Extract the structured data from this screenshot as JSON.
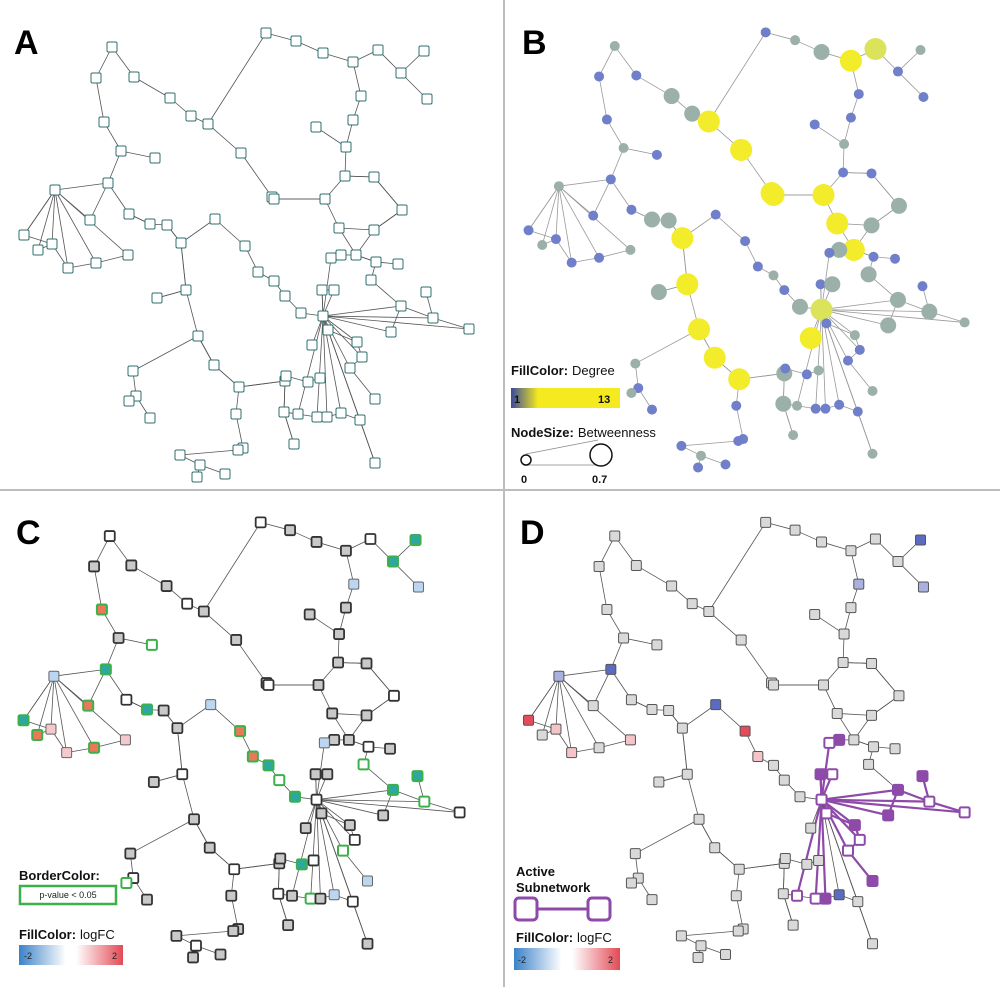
{
  "panels": {
    "a": {
      "label": "A"
    },
    "b": {
      "label": "B"
    },
    "c": {
      "label": "C"
    },
    "d": {
      "label": "D"
    }
  },
  "legend_b": {
    "fill_title": "FillColor:",
    "fill_attr": "Degree",
    "fill_min": "1",
    "fill_max": "13",
    "size_title": "NodeSize:",
    "size_attr": "Betweenness",
    "size_min": "0",
    "size_max": "0.7"
  },
  "legend_c": {
    "border_title": "BorderColor:",
    "border_text": "p-value < 0.05",
    "fill_title": "FillColor:",
    "fill_attr": "logFC",
    "fill_min": "-2",
    "fill_max": "2"
  },
  "legend_d": {
    "active_line1": "Active",
    "active_line2": "Subnetwork",
    "fill_title": "FillColor:",
    "fill_attr": "logFC",
    "fill_min": "-2",
    "fill_max": "2"
  },
  "colors": {
    "edge": "#555555",
    "node_border": "#2f6f6f",
    "deg_low": "#6f7fc9",
    "deg_mid": "#9bb0a8",
    "deg_high": "#f3ec2a",
    "sig_border": "#3cb04a",
    "active": "#8e4aa8"
  }
}
